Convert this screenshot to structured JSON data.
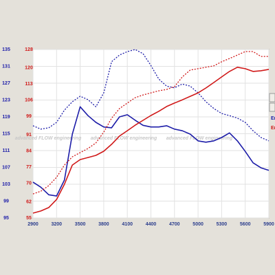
{
  "chart_data": {
    "type": "line",
    "watermark": "advanced FLOW engineering",
    "x": [
      2900,
      3000,
      3100,
      3200,
      3300,
      3400,
      3500,
      3600,
      3700,
      3800,
      3900,
      4000,
      4100,
      4200,
      4300,
      4400,
      4500,
      4600,
      4700,
      4800,
      4900,
      5000,
      5100,
      5200,
      5300,
      5400,
      5500,
      5600,
      5700,
      5800,
      5900
    ],
    "xlim": [
      2900,
      5900
    ],
    "xticks": [
      2900,
      3200,
      3500,
      3800,
      4100,
      4400,
      4700,
      5000,
      5300,
      5600,
      5900
    ],
    "ylim": [
      95,
      135
    ],
    "yticks": [
      95,
      99,
      103,
      107,
      111,
      115,
      119,
      123,
      127,
      131,
      135
    ],
    "y2lim": [
      55,
      128
    ],
    "y2ticks": [
      55,
      62,
      70,
      77,
      84,
      91,
      99,
      106,
      113,
      120,
      128
    ],
    "grid": true,
    "legend_entries": [
      {
        "label": "Er",
        "color": "#1c1ca8"
      },
      {
        "label": "Er",
        "color": "#d01818"
      }
    ],
    "series": [
      {
        "color": "#1c1ca8",
        "dash": false,
        "axis": "y",
        "values": [
          103.5,
          102.3,
          100.5,
          100.2,
          104.0,
          114.9,
          121.4,
          119.3,
          117.7,
          116.6,
          116.4,
          119.0,
          119.5,
          118.2,
          117.0,
          116.6,
          116.6,
          116.9,
          116.1,
          115.7,
          114.9,
          113.3,
          113.0,
          113.3,
          114.1,
          115.2,
          113.3,
          110.8,
          108.1,
          106.9,
          106.3
        ]
      },
      {
        "color": "#1c1ca8",
        "dash": true,
        "axis": "y",
        "values": [
          116.9,
          116.1,
          116.4,
          117.7,
          120.6,
          122.6,
          123.9,
          123.1,
          121.4,
          124.7,
          132.1,
          133.7,
          134.5,
          135.0,
          134.0,
          131.2,
          128.0,
          126.3,
          125.9,
          126.8,
          126.3,
          124.7,
          122.6,
          121.0,
          119.8,
          119.3,
          118.7,
          117.7,
          115.7,
          114.1,
          113.3
        ]
      },
      {
        "color": "#d01818",
        "dash": false,
        "axis": "y2",
        "values": [
          57.1,
          58.0,
          59.5,
          63.0,
          69.6,
          77.9,
          80.3,
          81.2,
          82.1,
          83.9,
          86.9,
          90.5,
          92.8,
          95.2,
          97.3,
          99.4,
          101.2,
          103.3,
          104.8,
          106.2,
          107.7,
          109.2,
          111.3,
          113.7,
          116.1,
          118.5,
          120.3,
          119.7,
          118.5,
          118.8,
          119.4
        ]
      },
      {
        "color": "#d01818",
        "dash": true,
        "axis": "y2",
        "values": [
          65.4,
          66.6,
          69.0,
          72.6,
          77.9,
          81.5,
          83.3,
          85.1,
          87.5,
          92.2,
          98.2,
          102.4,
          104.8,
          107.1,
          108.3,
          109.2,
          110.1,
          110.7,
          111.9,
          116.1,
          119.1,
          119.7,
          120.3,
          120.9,
          122.7,
          124.1,
          125.6,
          127.1,
          127.1,
          125.0,
          125.0
        ]
      }
    ]
  }
}
